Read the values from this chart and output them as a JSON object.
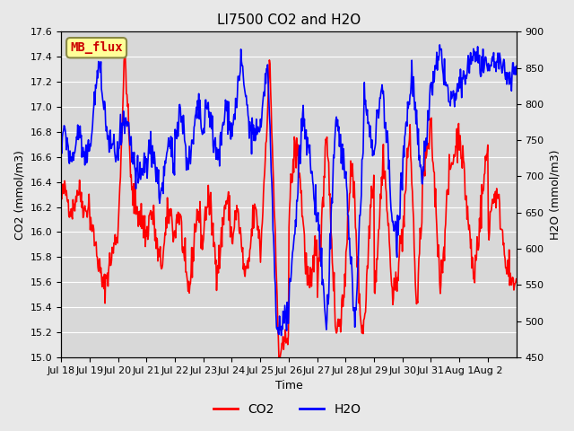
{
  "title": "LI7500 CO2 and H2O",
  "xlabel": "Time",
  "ylabel_left": "CO2 (mmol/m3)",
  "ylabel_right": "H2O (mmol/m3)",
  "ylim_left": [
    15.0,
    17.6
  ],
  "ylim_right": [
    450,
    900
  ],
  "yticks_left": [
    15.0,
    15.2,
    15.4,
    15.6,
    15.8,
    16.0,
    16.2,
    16.4,
    16.6,
    16.8,
    17.0,
    17.2,
    17.4,
    17.6
  ],
  "yticks_right": [
    450,
    500,
    550,
    600,
    650,
    700,
    750,
    800,
    850,
    900
  ],
  "xtick_labels": [
    "Jul 18",
    "Jul 19",
    "Jul 20",
    "Jul 21",
    "Jul 22",
    "Jul 23",
    "Jul 24",
    "Jul 25",
    "Jul 26",
    "Jul 27",
    "Jul 28",
    "Jul 29",
    "Jul 30",
    "Jul 31",
    "Aug 1",
    "Aug 2"
  ],
  "n_days": 16,
  "points_per_day": 48,
  "co2_color": "#ff0000",
  "h2o_color": "#0000ff",
  "line_width": 1.2,
  "bg_color": "#e8e8e8",
  "plot_bg_color": "#d8d8d8",
  "grid_color": "#ffffff",
  "annotation_text": "MB_flux",
  "annotation_bg": "#ffff99",
  "annotation_border": "#888844",
  "annotation_text_color": "#cc0000",
  "legend_co2": "CO2",
  "legend_h2o": "H2O"
}
